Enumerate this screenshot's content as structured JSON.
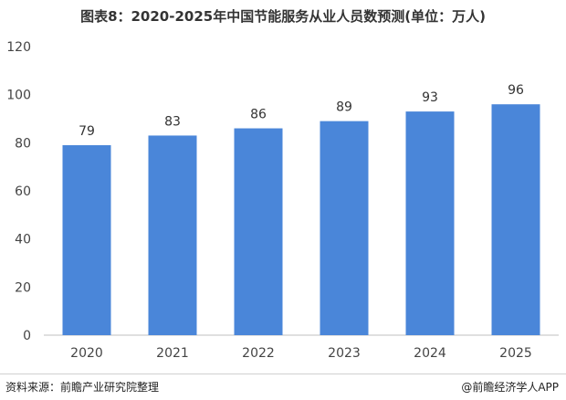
{
  "chart_data": {
    "type": "bar",
    "title": "图表8：2020-2025年中国节能服务从业人员数预测(单位：万人)",
    "categories": [
      "2020",
      "2021",
      "2022",
      "2023",
      "2024",
      "2025"
    ],
    "values": [
      79,
      83,
      86,
      89,
      93,
      96
    ],
    "ylim": [
      0,
      120
    ],
    "yticks": [
      0,
      20,
      40,
      60,
      80,
      100,
      120
    ],
    "grid": false,
    "legend": "none",
    "bar_color": "#4a86d9"
  },
  "footer": {
    "source": "资料来源：前瞻产业研究院整理",
    "brand": "@前瞻经济学人APP"
  }
}
